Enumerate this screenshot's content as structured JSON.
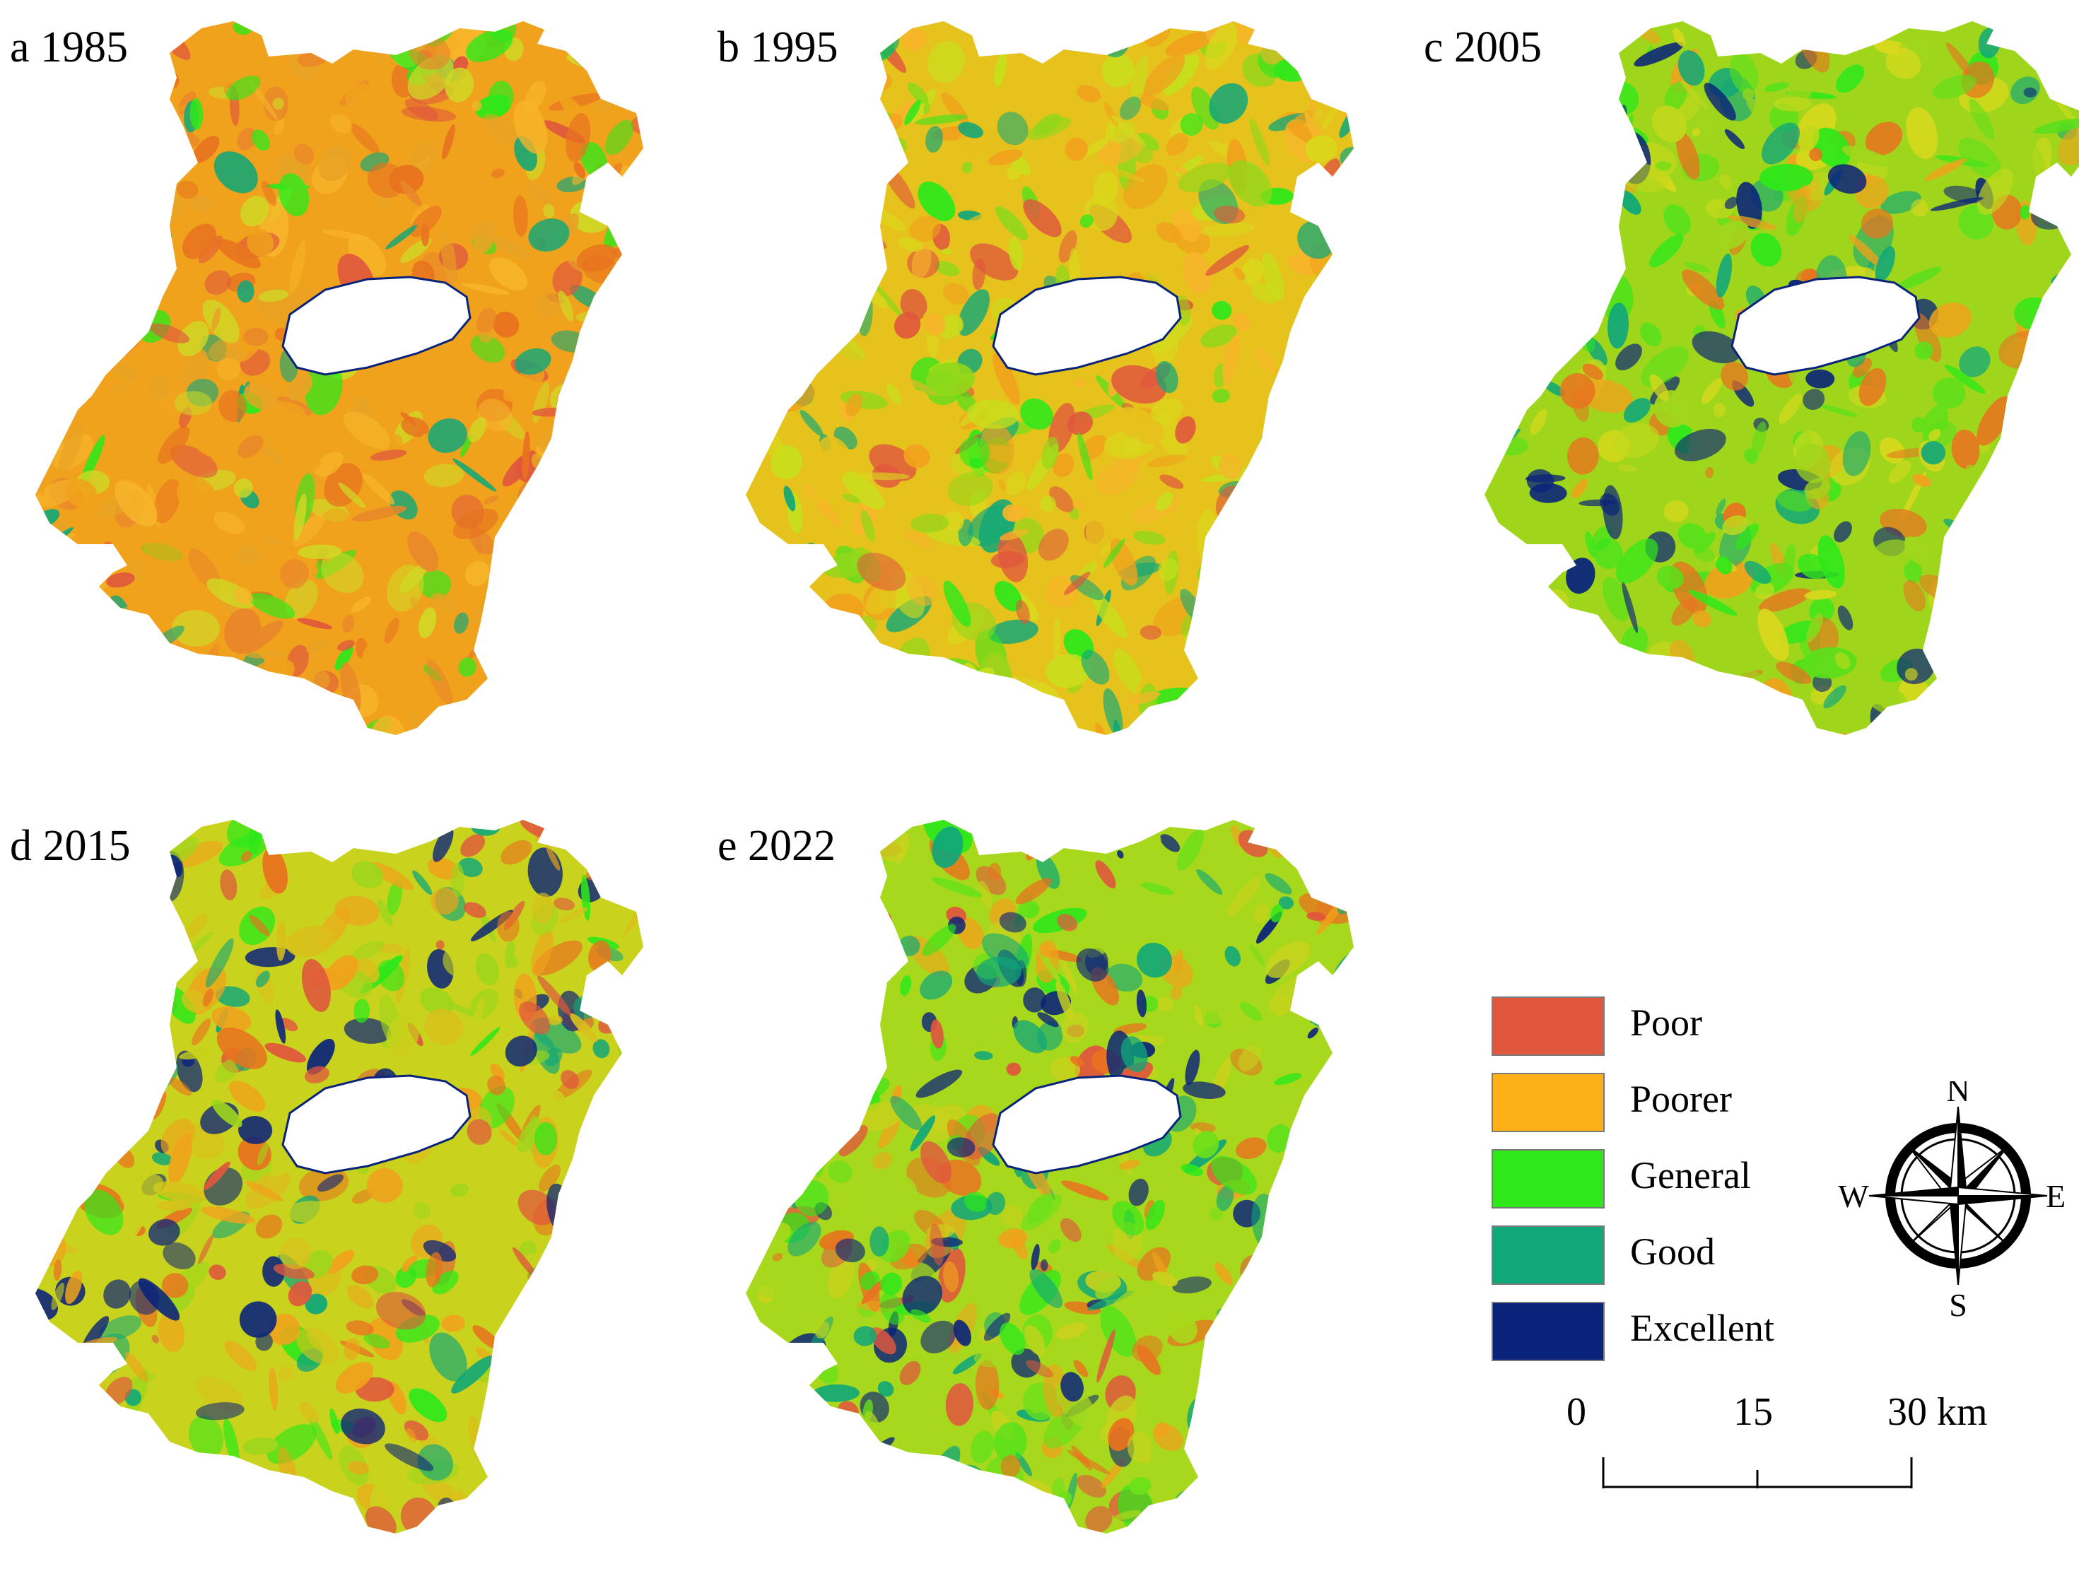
{
  "panels": [
    {
      "id": "a",
      "label": "a 1985",
      "dominant": "#f0a21c"
    },
    {
      "id": "b",
      "label": "b 1995",
      "dominant": "#e6c21c"
    },
    {
      "id": "c",
      "label": "c 2005",
      "dominant": "#9fd61c"
    },
    {
      "id": "d",
      "label": "d 2015",
      "dominant": "#c9d21c"
    },
    {
      "id": "e",
      "label": "e 2022",
      "dominant": "#a8d81c"
    }
  ],
  "legend": [
    {
      "label": "Poor",
      "color": "#e0573d"
    },
    {
      "label": "Poorer",
      "color": "#fdb017"
    },
    {
      "label": "General",
      "color": "#2ee81a"
    },
    {
      "label": "Good",
      "color": "#10a779"
    },
    {
      "label": "Excellent",
      "color": "#0a237a"
    }
  ],
  "compass": {
    "n": "N",
    "s": "S",
    "e": "E",
    "w": "W"
  },
  "scale_bar": {
    "ticks": [
      "0",
      "15",
      "30 km"
    ]
  }
}
